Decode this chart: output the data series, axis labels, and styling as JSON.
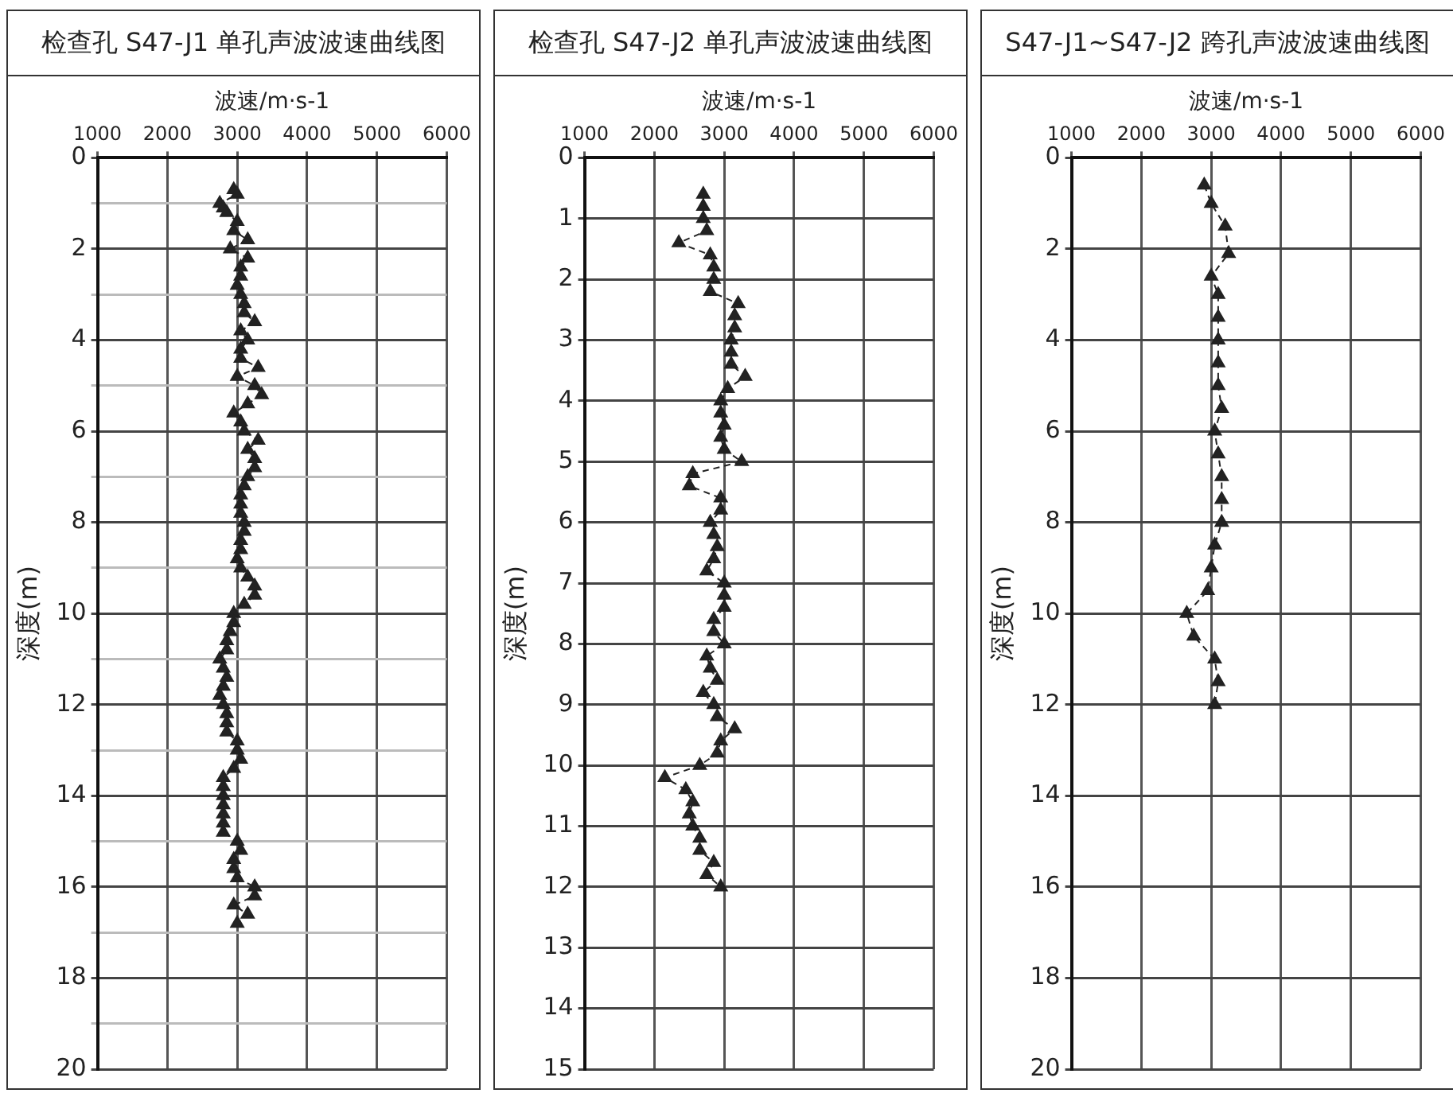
{
  "chart_data": [
    {
      "type": "line",
      "title": "检查孔 S47-J1 单孔声波波速曲线图",
      "xlabel": "波速/m·s-1",
      "ylabel": "深度(m)",
      "marker": "triangle",
      "line_style": "dashed",
      "grid": true,
      "xlim": [
        1000,
        6000
      ],
      "xticks": [
        1000,
        2000,
        3000,
        4000,
        5000,
        6000
      ],
      "ylim": [
        20,
        0
      ],
      "yticks": [
        0,
        {
          "value": 1,
          "label": null
        },
        2,
        {
          "value": 3,
          "label": null
        },
        4,
        {
          "value": 5,
          "label": null
        },
        6,
        {
          "value": 7,
          "label": null
        },
        8,
        {
          "value": 9,
          "label": null
        },
        10,
        {
          "value": 11,
          "label": null
        },
        12,
        {
          "value": 13,
          "label": null
        },
        14,
        {
          "value": 15,
          "label": null
        },
        16,
        {
          "value": 17,
          "label": null
        },
        18,
        {
          "value": 19,
          "label": null
        },
        20
      ],
      "series": [
        {
          "color": "#222222",
          "x": [
            2950,
            3000,
            2750,
            2800,
            2850,
            3000,
            2950,
            3150,
            2900,
            3150,
            3050,
            3050,
            3000,
            3050,
            3100,
            3100,
            3250,
            3050,
            3150,
            3050,
            3050,
            3300,
            3000,
            3250,
            3350,
            3150,
            2950,
            3050,
            3100,
            3300,
            3150,
            3250,
            3250,
            3150,
            3100,
            3050,
            3050,
            3050,
            3100,
            3100,
            3050,
            3050,
            3000,
            3050,
            3150,
            3250,
            3250,
            3100,
            2950,
            2950,
            2900,
            2850,
            2850,
            2750,
            2800,
            2850,
            2800,
            2750,
            2800,
            2850,
            2850,
            2850,
            3000,
            3000,
            3050,
            2950,
            2800,
            2800,
            2800,
            2800,
            2800,
            2800,
            2800,
            3000,
            3050,
            2950,
            2950,
            3000,
            3250,
            3250,
            2950,
            3150,
            3000
          ],
          "values": [
            0.7,
            0.8,
            1.0,
            1.1,
            1.2,
            1.4,
            1.6,
            1.8,
            2.0,
            2.2,
            2.4,
            2.6,
            2.8,
            3.0,
            3.2,
            3.4,
            3.6,
            3.8,
            4.0,
            4.2,
            4.4,
            4.6,
            4.8,
            5.0,
            5.2,
            5.4,
            5.6,
            5.8,
            6.0,
            6.2,
            6.4,
            6.6,
            6.8,
            7.0,
            7.2,
            7.4,
            7.6,
            7.8,
            8.0,
            8.2,
            8.4,
            8.6,
            8.8,
            9.0,
            9.2,
            9.4,
            9.6,
            9.8,
            10.0,
            10.2,
            10.4,
            10.6,
            10.8,
            11.0,
            11.2,
            11.4,
            11.6,
            11.8,
            12.0,
            12.2,
            12.4,
            12.6,
            12.8,
            13.0,
            13.2,
            13.4,
            13.6,
            13.8,
            14.0,
            14.2,
            14.4,
            14.6,
            14.8,
            15.0,
            15.2,
            15.4,
            15.6,
            15.8,
            16.0,
            16.2,
            16.4,
            16.6,
            16.8
          ]
        }
      ]
    },
    {
      "type": "line",
      "title": "检查孔 S47-J2 单孔声波波速曲线图",
      "xlabel": "波速/m·s-1",
      "ylabel": "深度(m)",
      "marker": "triangle",
      "line_style": "dashed",
      "grid": true,
      "xlim": [
        1000,
        6000
      ],
      "xticks": [
        1000,
        2000,
        3000,
        4000,
        5000,
        6000
      ],
      "ylim": [
        15,
        0
      ],
      "yticks": [
        0,
        1,
        2,
        3,
        4,
        5,
        6,
        7,
        8,
        9,
        10,
        11,
        12,
        13,
        14,
        15
      ],
      "series": [
        {
          "color": "#222222",
          "x": [
            2700,
            2700,
            2700,
            2750,
            2350,
            2800,
            2850,
            2850,
            2800,
            3200,
            3150,
            3150,
            3100,
            3100,
            3100,
            3300,
            3050,
            2950,
            2950,
            3000,
            2950,
            3000,
            3250,
            2550,
            2500,
            2950,
            2950,
            2800,
            2850,
            2900,
            2850,
            2750,
            3000,
            3000,
            3000,
            2850,
            2850,
            3000,
            2750,
            2800,
            2900,
            2700,
            2850,
            2900,
            3150,
            2950,
            2900,
            2650,
            2150,
            2450,
            2550,
            2500,
            2550,
            2650,
            2650,
            2850,
            2750,
            2950
          ],
          "values": [
            0.6,
            0.8,
            1.0,
            1.2,
            1.4,
            1.6,
            1.8,
            2.0,
            2.2,
            2.4,
            2.6,
            2.8,
            3.0,
            3.2,
            3.4,
            3.6,
            3.8,
            4.0,
            4.2,
            4.4,
            4.6,
            4.8,
            5.0,
            5.2,
            5.4,
            5.6,
            5.8,
            6.0,
            6.2,
            6.4,
            6.6,
            6.8,
            7.0,
            7.2,
            7.4,
            7.6,
            7.8,
            8.0,
            8.2,
            8.4,
            8.6,
            8.8,
            9.0,
            9.2,
            9.4,
            9.6,
            9.8,
            10.0,
            10.2,
            10.4,
            10.6,
            10.8,
            11.0,
            11.2,
            11.4,
            11.6,
            11.8,
            12.0
          ]
        }
      ]
    },
    {
      "type": "line",
      "title": "S47-J1~S47-J2 跨孔声波波速曲线图",
      "xlabel": "波速/m·s-1",
      "ylabel": "深度(m)",
      "marker": "triangle",
      "line_style": "dashed",
      "grid": true,
      "xlim": [
        1000,
        6000
      ],
      "xticks": [
        1000,
        2000,
        3000,
        4000,
        5000,
        6000
      ],
      "ylim": [
        20,
        0
      ],
      "yticks": [
        0,
        2,
        4,
        6,
        8,
        10,
        12,
        14,
        16,
        18,
        20
      ],
      "series": [
        {
          "color": "#222222",
          "x": [
            2900,
            3000,
            3200,
            3250,
            3000,
            3100,
            3100,
            3100,
            3100,
            3100,
            3150,
            3050,
            3100,
            3150,
            3150,
            3150,
            3050,
            3000,
            2950,
            2650,
            2750,
            3050,
            3100,
            3050
          ],
          "values": [
            0.6,
            1.0,
            1.5,
            2.1,
            2.6,
            3.0,
            3.5,
            4.0,
            4.5,
            5.0,
            5.5,
            6.0,
            6.5,
            7.0,
            7.5,
            8.0,
            8.5,
            9.0,
            9.5,
            10.0,
            10.5,
            11.0,
            11.5,
            12.0
          ]
        }
      ]
    }
  ]
}
